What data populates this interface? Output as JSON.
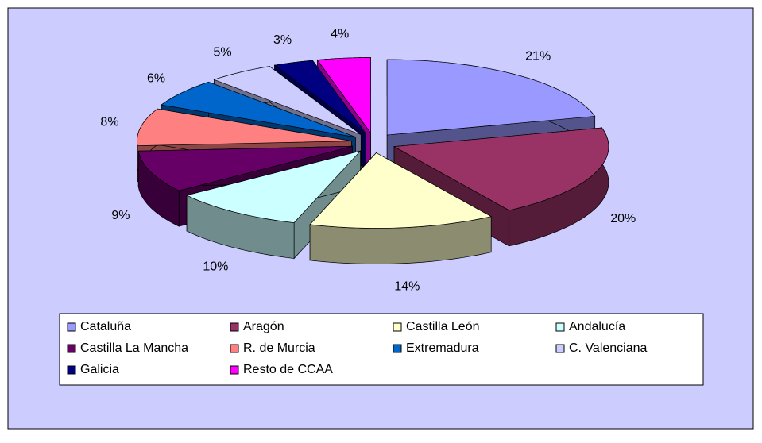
{
  "chart_data": {
    "type": "pie",
    "categories": [
      "Cataluña",
      "Aragón",
      "Castilla León",
      "Andalucía",
      "Castilla La Mancha",
      "R. de Murcia",
      "Extremadura",
      "C. Valenciana",
      "Galicia",
      "Resto de CCAA"
    ],
    "values": [
      21,
      20,
      14,
      10,
      9,
      8,
      6,
      5,
      3,
      4
    ],
    "value_labels": [
      "21%",
      "20%",
      "14%",
      "10%",
      "9%",
      "8%",
      "6%",
      "5%",
      "3%",
      "4%"
    ],
    "colors": [
      "#9999ff",
      "#993366",
      "#ffffcc",
      "#ccffff",
      "#660066",
      "#ff8080",
      "#0066cc",
      "#ccccff",
      "#000080",
      "#ff00ff"
    ],
    "legend": "bottom"
  }
}
